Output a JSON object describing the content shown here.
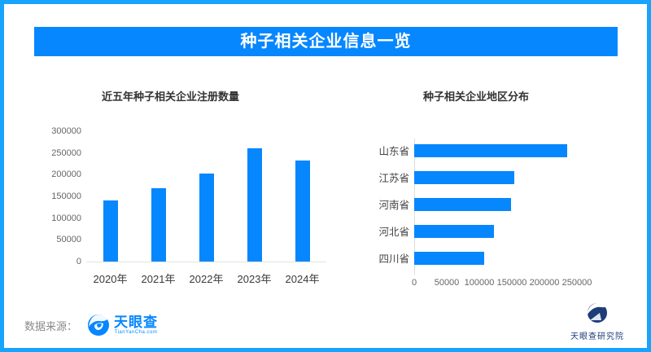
{
  "page": {
    "border_color": "#17a3fe",
    "background": "#ffffff"
  },
  "header": {
    "title": "种子相关企业信息一览",
    "bg_color": "#0787fe",
    "text_color": "#ffffff"
  },
  "chart_data": [
    {
      "type": "bar",
      "title": "近五年种子相关企业注册数量",
      "categories": [
        "2020年",
        "2021年",
        "2022年",
        "2023年",
        "2024年"
      ],
      "values": [
        140000,
        168000,
        203000,
        260000,
        233000
      ],
      "ylim": [
        0,
        300000
      ],
      "yticks": [
        300000,
        250000,
        200000,
        150000,
        100000,
        50000,
        0
      ],
      "bar_color": "#0787fe",
      "xlabel": "",
      "ylabel": "",
      "grid": false,
      "legend": false
    },
    {
      "type": "bar",
      "orientation": "horizontal",
      "title": "种子相关企业地区分布",
      "categories": [
        "山东省",
        "江苏省",
        "河南省",
        "河北省",
        "四川省"
      ],
      "values": [
        235000,
        154000,
        149000,
        123000,
        108000
      ],
      "xlim": [
        0,
        250000
      ],
      "xticks": [
        0,
        50000,
        100000,
        150000,
        200000,
        250000
      ],
      "bar_color": "#0787fe",
      "xlabel": "",
      "ylabel": "",
      "grid": false,
      "legend": false
    }
  ],
  "footer": {
    "source_label": "数据来源：",
    "tianyancha": {
      "name": "天眼查",
      "subtext": "TianYanCha.com",
      "color": "#0787fe"
    },
    "research_institute": {
      "name": "天眼查研究院",
      "color": "#1d3c78"
    }
  }
}
